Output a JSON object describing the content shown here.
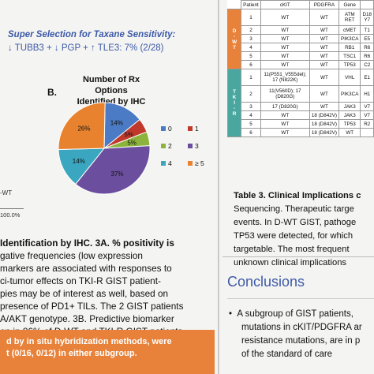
{
  "left": {
    "super_title": "Super Selection for Taxane Sensitivity:",
    "super_line": "↓ TUBB3 + ↓ PGP + ↑ TLE3: 7% (2/28)",
    "panel_b": "B.",
    "chart_title_1": "Number of Rx Options",
    "chart_title_2": "Identified by IHC",
    "wt_label": "-WT",
    "pct_label": "100.0%",
    "body_lines": [
      "Identification by IHC. 3A. % positivity is",
      "gative frequencies (low expression",
      "markers are associated with responses to",
      "ci-tumor effects on TKI-R GIST patient-",
      "pies may be of interest as well, based on",
      "presence of PD1+ TILs. The 2 GIST patients",
      "A/AKT genotype. 3B. Predictive biomarker",
      "on in 86% of D-WT and TKI-R GIST patients."
    ],
    "orange_lines": [
      "d by in situ hybridization methods, were",
      "t (0/16, 0/12) in either subgroup."
    ]
  },
  "chart_data": {
    "type": "pie",
    "title": "Number of Rx Options Identified by IHC",
    "categories": [
      "0",
      "1",
      "2",
      "3",
      "4",
      "≥ 5"
    ],
    "values": [
      14,
      5,
      5,
      37,
      14,
      26
    ],
    "slice_labels": [
      "14%",
      "5%",
      "5%",
      "37%",
      "14%",
      "26%"
    ],
    "colors": [
      "#4a7bc4",
      "#c0392b",
      "#8cb43c",
      "#6b4f9e",
      "#3aa6bf",
      "#e8822e"
    ],
    "legend_position": "right"
  },
  "table": {
    "header": [
      "Patient",
      "cKIT",
      "PDGFRA",
      "Gene"
    ],
    "groups": [
      {
        "label": "D-WT",
        "letters": [
          "D",
          "-",
          "W",
          "T"
        ]
      },
      {
        "label": "TKI-R",
        "letters": [
          "T",
          "K",
          "I",
          "-",
          "R"
        ]
      }
    ],
    "rows": [
      {
        "patient": "1",
        "ckit": "WT",
        "pdgfra": "WT",
        "genes": [
          "ATM",
          "RET"
        ],
        "extra": [
          "D18",
          "Y7"
        ]
      },
      {
        "patient": "2",
        "ckit": "WT",
        "pdgfra": "WT",
        "genes": [
          "cMET"
        ],
        "extra": [
          "T1"
        ]
      },
      {
        "patient": "3",
        "ckit": "WT",
        "pdgfra": "WT",
        "genes": [
          "PIK3CA"
        ],
        "extra": [
          "E5"
        ]
      },
      {
        "patient": "4",
        "ckit": "WT",
        "pdgfra": "WT",
        "genes": [
          "RB1"
        ],
        "extra": [
          "R6"
        ]
      },
      {
        "patient": "5",
        "ckit": "WT",
        "pdgfra": "WT",
        "genes": [
          "TSC1"
        ],
        "extra": [
          "R6"
        ]
      },
      {
        "patient": "6",
        "ckit": "WT",
        "pdgfra": "WT",
        "genes": [
          "TP53"
        ],
        "extra": [
          "C2"
        ]
      },
      {
        "patient": "1",
        "ckit": "11(P551_V555del); 17 (N822K)",
        "pdgfra": "WT",
        "genes": [
          "VHL"
        ],
        "extra": [
          "E1"
        ]
      },
      {
        "patient": "2",
        "ckit": "11(V560D); 17 (D820G)",
        "pdgfra": "WT",
        "genes": [
          "PIK3CA"
        ],
        "extra": [
          "H1"
        ]
      },
      {
        "patient": "3",
        "ckit": "17 (D820G)",
        "pdgfra": "WT",
        "genes": [
          "JAK3"
        ],
        "extra": [
          "V7"
        ]
      },
      {
        "patient": "4",
        "ckit": "WT",
        "pdgfra": "18 (D842V)",
        "genes": [
          "JAK3"
        ],
        "extra": [
          "V7"
        ]
      },
      {
        "patient": "5",
        "ckit": "WT",
        "pdgfra": "18 (D842V)",
        "genes": [
          "TP53"
        ],
        "extra": [
          "R2"
        ]
      },
      {
        "patient": "6",
        "ckit": "WT",
        "pdgfra": "18 (D842V)",
        "genes": [
          "WT"
        ],
        "extra": [
          ""
        ]
      }
    ],
    "caption_lines": [
      "Table 3. Clinical Implications c",
      "Sequencing. Therapeutic targe",
      "events. In D-WT GIST, pathoge",
      "TP53 were detected, for which",
      "targetable. The most frequent",
      "unknown clinical implications"
    ]
  },
  "conclusions": {
    "heading": "Conclusions",
    "bullet": "•",
    "lines": [
      "A subgroup of GIST patients,",
      "mutations in cKIT/PDGFRA ar",
      "resistance mutations, are in p",
      "of the standard of care"
    ]
  }
}
